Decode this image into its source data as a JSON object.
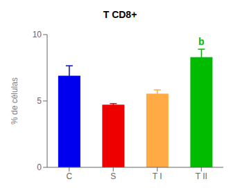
{
  "chart_data": {
    "type": "bar",
    "title": "T CD8+",
    "categories": [
      "C",
      "S",
      "T I",
      "T II"
    ],
    "values": [
      6.9,
      4.72,
      5.55,
      8.3
    ],
    "errors": [
      0.75,
      0.08,
      0.28,
      0.6
    ],
    "colors": [
      "#0000ee",
      "#ee0000",
      "#ffaa44",
      "#00bb00"
    ],
    "ylabel": "% de células",
    "ylim": [
      0,
      10
    ],
    "yticks": [
      0,
      5,
      10
    ],
    "grid": false,
    "annotations": [
      {
        "text": "b",
        "category": "T II",
        "color": "#00bb00"
      }
    ]
  }
}
